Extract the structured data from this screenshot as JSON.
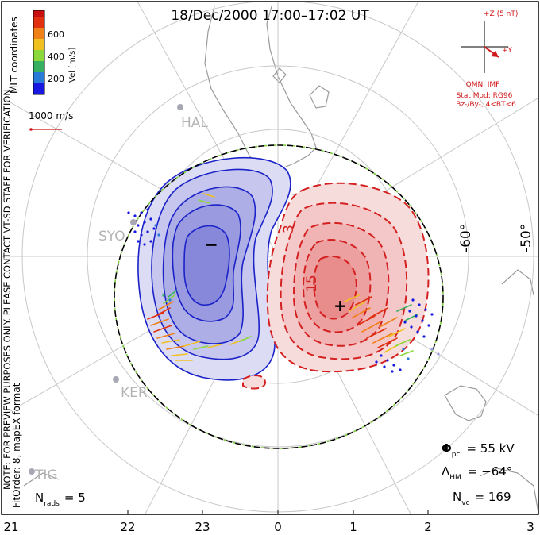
{
  "title": "18/Dec/2000 17:00–17:02 UT",
  "colorbar": {
    "label": "Vel [m/s]",
    "ticks": [
      "600",
      "400",
      "200"
    ],
    "colors": [
      "#1818e0",
      "#2a7ad8",
      "#36b060",
      "#8ad83a",
      "#f0c020",
      "#f08018",
      "#e03010",
      "#c81010"
    ]
  },
  "coords_label": "MLT coordinates",
  "scale_vector_label": "1000 m/s",
  "watermark": "NOTE: FOR PREVIEW PURPOSES ONLY. PLEASE CONTACT VT-SD STAFF FOR VERIFICATION.",
  "fit_info": "FitOrder: 8, mapEX format",
  "imf": {
    "z_label": "+Z (5 nT)",
    "y_label": "+Y",
    "source": "OMNI IMF",
    "stat_mod": "Stat Mod: RG96",
    "condition": "Bz-/By-, 4<BT<6"
  },
  "latitude_labels": [
    "-60°",
    "-50°"
  ],
  "contour_labels": [
    "3",
    "15"
  ],
  "potential_markers": {
    "min": "−",
    "max": "+"
  },
  "stations": [
    "HAL",
    "SYO",
    "KER",
    "TIG"
  ],
  "stats": {
    "phi_pc_symbol": "Φ",
    "phi_pc_sub": "pc",
    "phi_pc_value": "= 55 kV",
    "lambda_hm_symbol": "Λ",
    "lambda_hm_sub": "HM",
    "lambda_hm_value": "= −64°",
    "n_vc_symbol": "N",
    "n_vc_sub": "vc",
    "n_vc_value": "= 169",
    "n_rads_symbol": "N",
    "n_rads_sub": "rads",
    "n_rads_value": "= 5"
  },
  "mlt_ticks": [
    "21",
    "22",
    "23",
    "0",
    "1",
    "2",
    "3"
  ]
}
